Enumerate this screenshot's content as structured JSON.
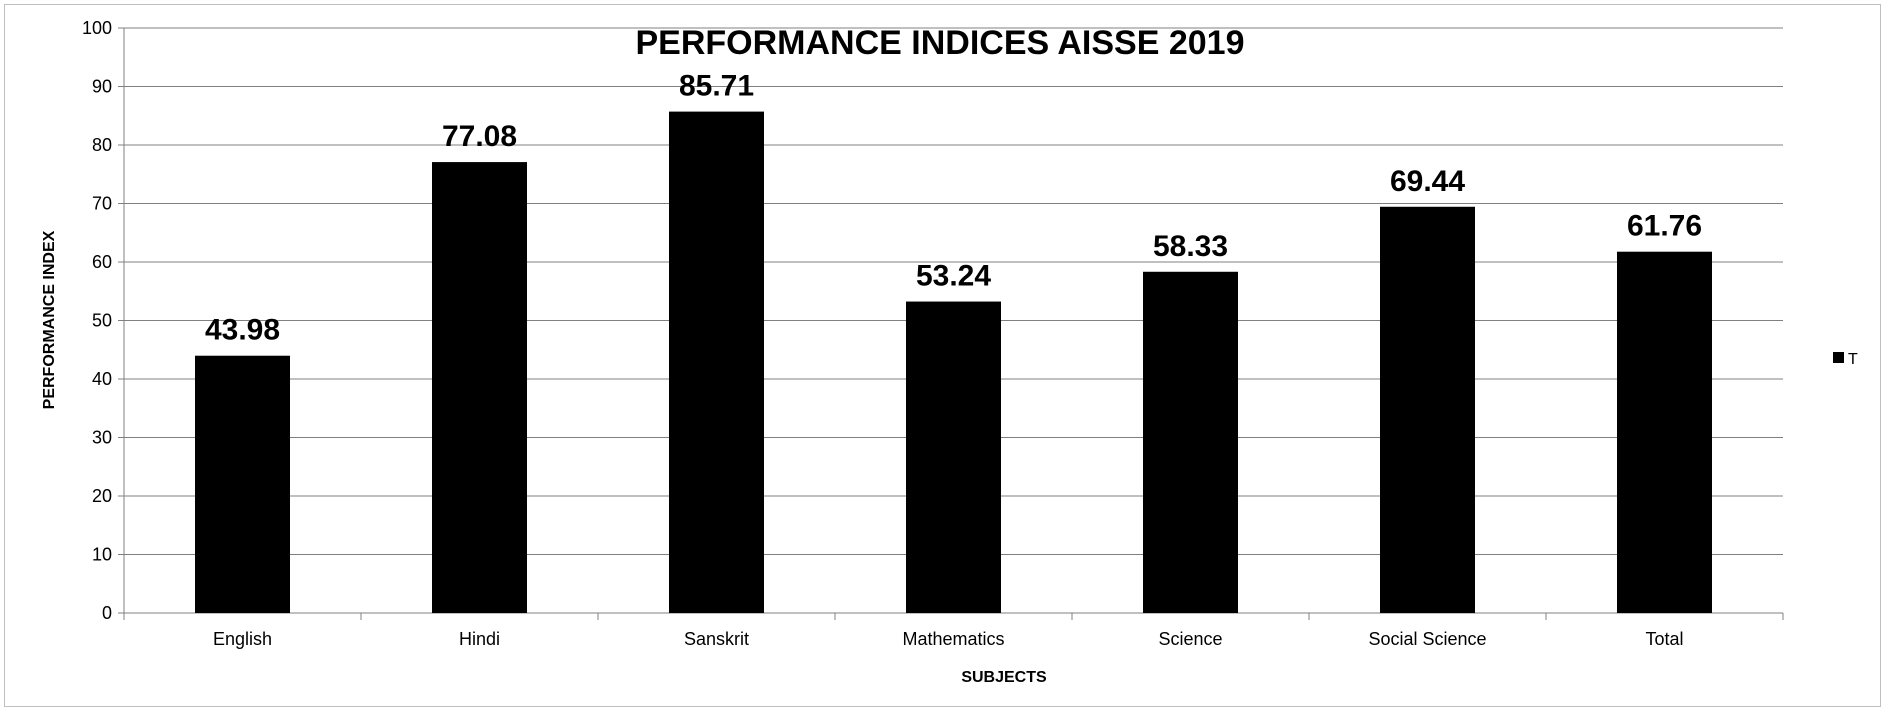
{
  "chart_data": {
    "type": "bar",
    "title": "PERFORMANCE INDICES AISSE 2019",
    "xlabel": "SUBJECTS",
    "ylabel": "PERFORMANCE INDEX",
    "categories": [
      "English",
      "Hindi",
      "Sanskrit",
      "Mathematics",
      "Science",
      "Social Science",
      "Total"
    ],
    "series": [
      {
        "name": "T",
        "values": [
          43.98,
          77.08,
          85.71,
          53.24,
          58.33,
          69.44,
          61.76
        ],
        "color": "#000000"
      }
    ],
    "data_labels": [
      "43.98",
      "77.08",
      "85.71",
      "53.24",
      "58.33",
      "69.44",
      "61.76"
    ],
    "ylim": [
      0,
      100
    ],
    "yticks": [
      0,
      10,
      20,
      30,
      40,
      50,
      60,
      70,
      80,
      90,
      100
    ],
    "grid": true,
    "legend_position": "right",
    "colors": {
      "bar": "#000000",
      "grid": "#808080",
      "frame": "#bfbfbf"
    }
  }
}
